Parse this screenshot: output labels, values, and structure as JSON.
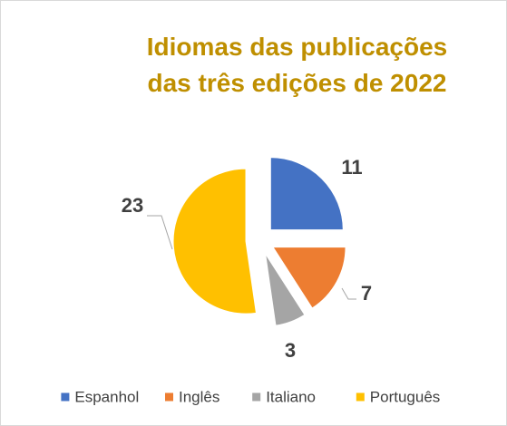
{
  "chart_data": {
    "type": "pie",
    "title": "Idiomas das publicações das três edições de 2022",
    "categories": [
      "Espanhol",
      "Inglês",
      "Italiano",
      "Português"
    ],
    "values": [
      11,
      7,
      3,
      23
    ],
    "colors": [
      "#4472c4",
      "#ed7d31",
      "#a5a5a5",
      "#ffc000"
    ],
    "exploded": true,
    "legend": "bottom"
  }
}
